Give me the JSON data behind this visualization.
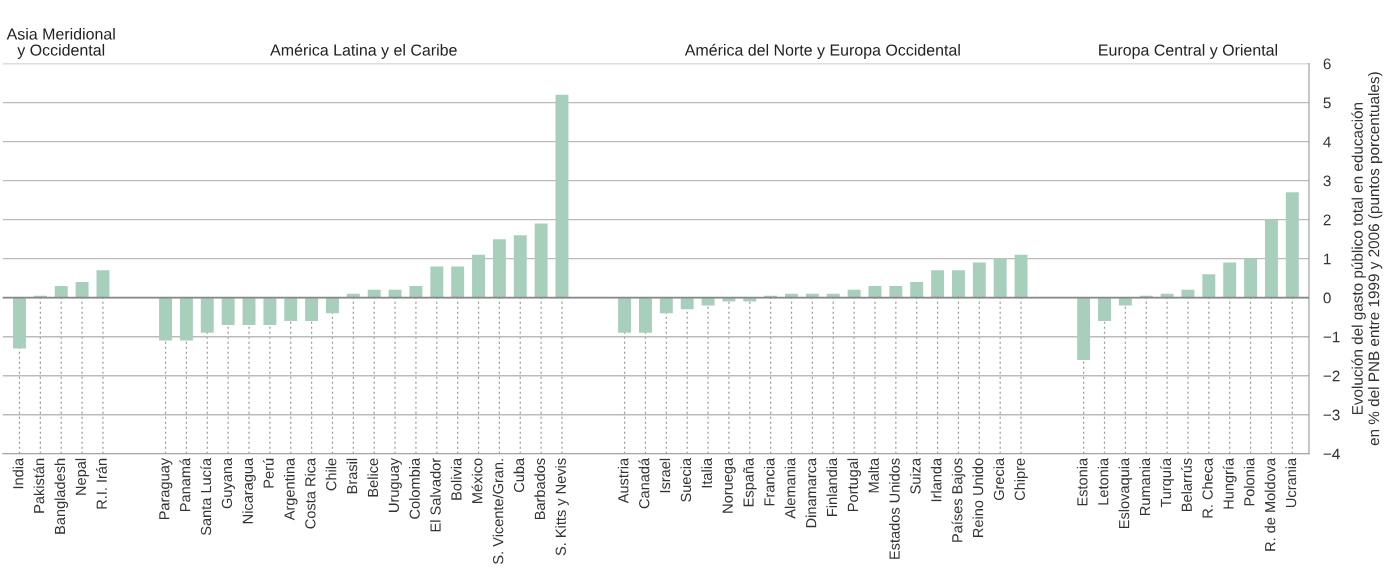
{
  "chart_data": {
    "type": "bar",
    "categories": [
      "India",
      "Pakistán",
      "Bangladesh",
      "Nepal",
      "R.I. Irán",
      null,
      null,
      "Paraguay",
      "Panamá",
      "Santa Lucía",
      "Guyana",
      "Nicaragua",
      "Perú",
      "Argentina",
      "Costa Rica",
      "Chile",
      "Brasil",
      "Belice",
      "Uruguay",
      "Colombia",
      "El Salvador",
      "Bolivia",
      "México",
      "S. Vicente/Gran.",
      "Cuba",
      "Barbados",
      "S. Kitts y Nevis",
      null,
      null,
      "Austria",
      "Canadá",
      "Israel",
      "Suecia",
      "Italia",
      "Noruega",
      "España",
      "Francia",
      "Alemania",
      "Dinamarca",
      "Finlandia",
      "Portugal",
      "Malta",
      "Estados Unidos",
      "Suiza",
      "Irlanda",
      "Países Bajos",
      "Reino Unido",
      "Grecia",
      "Chipre",
      null,
      null,
      "Estonia",
      "Letonia",
      "Eslovaquia",
      "Rumania",
      "Turquía",
      "Belarrús",
      "R. Checa",
      "Hungría",
      "Polonia",
      "R. de Moldova",
      "Ucrania"
    ],
    "values": [
      -1.3,
      0.05,
      0.3,
      0.4,
      0.7,
      null,
      null,
      -1.1,
      -1.1,
      -0.9,
      -0.7,
      -0.7,
      -0.7,
      -0.6,
      -0.6,
      -0.4,
      0.1,
      0.2,
      0.2,
      0.3,
      0.8,
      0.8,
      1.1,
      1.5,
      1.6,
      1.9,
      5.2,
      null,
      null,
      -0.9,
      -0.9,
      -0.4,
      -0.3,
      -0.2,
      -0.1,
      -0.1,
      0.05,
      0.1,
      0.1,
      0.1,
      0.2,
      0.3,
      0.3,
      0.4,
      0.7,
      0.7,
      0.9,
      1.0,
      1.1,
      null,
      null,
      -1.6,
      -0.6,
      -0.2,
      0.05,
      0.1,
      0.2,
      0.6,
      0.9,
      1.0,
      2.0,
      2.7
    ],
    "color": "#a8cfbc",
    "ylabel": "Evolución del gasto público total en educación\nen % del PNB entre 1999 y 2006 (puntos porcentuales)",
    "ylim": [
      -4,
      6
    ],
    "yticks": [
      -4,
      -3,
      -2,
      -1,
      0,
      1,
      2,
      3,
      4,
      5,
      6
    ],
    "grid": true,
    "annotations": [
      "Asia Meridional\ny Occidental",
      "América Latina y el Caribe",
      "América del Norte y Europa Occidental",
      "Europa Central y Oriental"
    ]
  }
}
